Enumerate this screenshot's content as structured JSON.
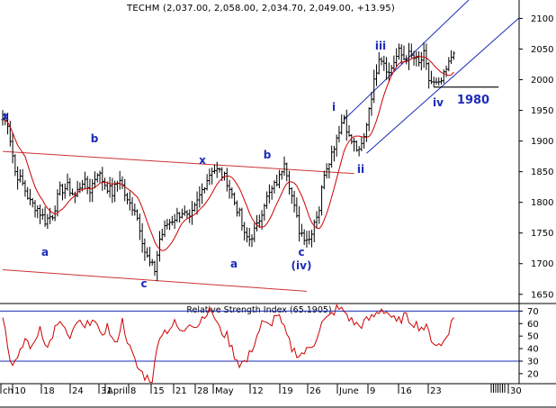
{
  "chart_data": [
    {
      "type": "ohlc",
      "title": "TECHM (2,037.00, 2,058.00, 2,034.70, 2,049.00, +13.95)",
      "ylim": [
        1635,
        2130
      ],
      "yticks": [
        1650,
        1700,
        1750,
        1800,
        1850,
        1900,
        1950,
        2000,
        2050,
        2100
      ],
      "xticks": [
        "ch",
        "10",
        "18",
        "24",
        "31",
        "April",
        "8",
        "15",
        "21",
        "28",
        "May",
        "12",
        "19",
        "26",
        "June",
        "9",
        "16",
        "23",
        "30"
      ],
      "price_anchors": [
        [
          0,
          1935
        ],
        [
          2,
          1930
        ],
        [
          5,
          1850
        ],
        [
          8,
          1830
        ],
        [
          11,
          1800
        ],
        [
          14,
          1790
        ],
        [
          17,
          1770
        ],
        [
          20,
          1780
        ],
        [
          23,
          1820
        ],
        [
          26,
          1825
        ],
        [
          29,
          1810
        ],
        [
          32,
          1835
        ],
        [
          35,
          1820
        ],
        [
          38,
          1850
        ],
        [
          41,
          1830
        ],
        [
          44,
          1815
        ],
        [
          47,
          1840
        ],
        [
          50,
          1800
        ],
        [
          53,
          1790
        ],
        [
          55,
          1760
        ],
        [
          57,
          1720
        ],
        [
          59,
          1700
        ],
        [
          61,
          1690
        ],
        [
          63,
          1740
        ],
        [
          66,
          1765
        ],
        [
          69,
          1775
        ],
        [
          72,
          1785
        ],
        [
          75,
          1770
        ],
        [
          78,
          1800
        ],
        [
          81,
          1830
        ],
        [
          84,
          1855
        ],
        [
          87,
          1850
        ],
        [
          90,
          1835
        ],
        [
          93,
          1800
        ],
        [
          95,
          1780
        ],
        [
          97,
          1745
        ],
        [
          99,
          1740
        ],
        [
          102,
          1760
        ],
        [
          105,
          1800
        ],
        [
          108,
          1820
        ],
        [
          111,
          1840
        ],
        [
          113,
          1870
        ],
        [
          115,
          1830
        ],
        [
          117,
          1790
        ],
        [
          119,
          1755
        ],
        [
          121,
          1745
        ],
        [
          123,
          1740
        ],
        [
          125,
          1770
        ],
        [
          127,
          1790
        ],
        [
          129,
          1850
        ],
        [
          132,
          1880
        ],
        [
          135,
          1920
        ],
        [
          137,
          1940
        ],
        [
          139,
          1905
        ],
        [
          141,
          1895
        ],
        [
          143,
          1880
        ],
        [
          145,
          1905
        ],
        [
          147,
          1955
        ],
        [
          149,
          1995
        ],
        [
          151,
          2040
        ],
        [
          153,
          2030
        ],
        [
          155,
          2010
        ],
        [
          157,
          2030
        ],
        [
          159,
          2045
        ],
        [
          161,
          2035
        ],
        [
          163,
          2040
        ],
        [
          165,
          2035
        ],
        [
          167,
          2025
        ],
        [
          169,
          2040
        ],
        [
          171,
          2000
        ],
        [
          173,
          1993
        ],
        [
          175,
          1990
        ],
        [
          177,
          2005
        ],
        [
          179,
          2025
        ],
        [
          181,
          2050
        ]
      ],
      "moving_average_color": "#cc0000",
      "labels": [
        "x",
        "b",
        "a",
        "c",
        "x",
        "a",
        "b",
        "c",
        "(iv)",
        "i",
        "ii",
        "iii",
        "iv",
        "1980"
      ],
      "trendlines": [
        {
          "from": [
            0,
            1883
          ],
          "to": [
            141,
            1847
          ]
        },
        {
          "from": [
            0,
            1690
          ],
          "to": [
            122,
            1655
          ]
        },
        {
          "from": [
            137,
            1935
          ],
          "to": [
            187,
            2130
          ]
        },
        {
          "from": [
            146,
            1880
          ],
          "to": [
            207,
            2100
          ]
        },
        {
          "from": [
            173,
            1988
          ],
          "to": [
            199,
            1988
          ]
        }
      ]
    },
    {
      "type": "line",
      "title": "Relative Strength Index (65.1905)",
      "ylim": [
        12,
        76
      ],
      "yticks": [
        20,
        30,
        40,
        50,
        60,
        70
      ],
      "reference_lines": [
        70,
        30
      ],
      "line_color": "#cc0000",
      "rsi_anchors": [
        [
          0,
          68
        ],
        [
          3,
          30
        ],
        [
          6,
          30
        ],
        [
          9,
          48
        ],
        [
          12,
          40
        ],
        [
          15,
          58
        ],
        [
          18,
          40
        ],
        [
          21,
          56
        ],
        [
          24,
          60
        ],
        [
          27,
          46
        ],
        [
          30,
          62
        ],
        [
          33,
          55
        ],
        [
          36,
          66
        ],
        [
          39,
          50
        ],
        [
          42,
          58
        ],
        [
          45,
          42
        ],
        [
          48,
          62
        ],
        [
          51,
          40
        ],
        [
          54,
          25
        ],
        [
          57,
          18
        ],
        [
          60,
          15
        ],
        [
          63,
          52
        ],
        [
          66,
          55
        ],
        [
          69,
          60
        ],
        [
          72,
          52
        ],
        [
          75,
          62
        ],
        [
          78,
          58
        ],
        [
          81,
          68
        ],
        [
          84,
          70
        ],
        [
          87,
          55
        ],
        [
          90,
          50
        ],
        [
          93,
          35
        ],
        [
          95,
          28
        ],
        [
          98,
          30
        ],
        [
          101,
          45
        ],
        [
          104,
          60
        ],
        [
          107,
          58
        ],
        [
          110,
          68
        ],
        [
          113,
          55
        ],
        [
          116,
          40
        ],
        [
          119,
          35
        ],
        [
          122,
          38
        ],
        [
          125,
          45
        ],
        [
          128,
          60
        ],
        [
          131,
          65
        ],
        [
          134,
          72
        ],
        [
          137,
          70
        ],
        [
          140,
          62
        ],
        [
          143,
          58
        ],
        [
          146,
          62
        ],
        [
          149,
          66
        ],
        [
          152,
          72
        ],
        [
          155,
          68
        ],
        [
          158,
          60
        ],
        [
          161,
          66
        ],
        [
          164,
          62
        ],
        [
          167,
          58
        ],
        [
          170,
          56
        ],
        [
          173,
          45
        ],
        [
          176,
          42
        ],
        [
          179,
          55
        ],
        [
          181,
          65
        ]
      ]
    }
  ]
}
